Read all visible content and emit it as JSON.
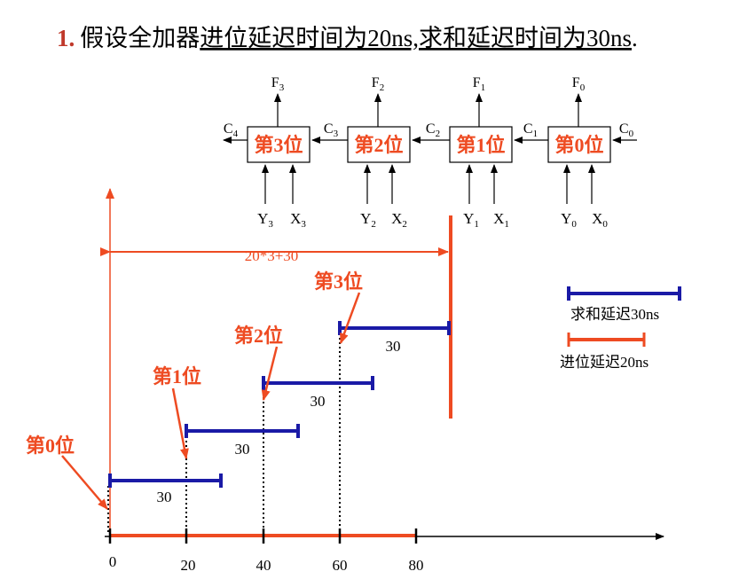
{
  "title": {
    "number": "1.",
    "prefix": "假设全加器",
    "underlined": "进位延迟时间为20ns,求和延迟时间为30ns",
    "suffix": "."
  },
  "adder": {
    "stages": [
      {
        "label": "第3位",
        "f": "F",
        "f_sub": "3",
        "y": "Y",
        "y_sub": "3",
        "x": "X",
        "x_sub": "3"
      },
      {
        "label": "第2位",
        "f": "F",
        "f_sub": "2",
        "y": "Y",
        "y_sub": "2",
        "x": "X",
        "x_sub": "2"
      },
      {
        "label": "第1位",
        "f": "F",
        "f_sub": "1",
        "y": "Y",
        "y_sub": "1",
        "x": "X",
        "x_sub": "1"
      },
      {
        "label": "第0位",
        "f": "F",
        "f_sub": "0",
        "y": "Y",
        "y_sub": "0",
        "x": "X",
        "x_sub": "0"
      }
    ],
    "carries": [
      {
        "c": "C",
        "sub": "4"
      },
      {
        "c": "C",
        "sub": "3"
      },
      {
        "c": "C",
        "sub": "2"
      },
      {
        "c": "C",
        "sub": "1"
      },
      {
        "c": "C",
        "sub": "0"
      }
    ]
  },
  "timing": {
    "axis_ticks": [
      "0",
      "20",
      "40",
      "60",
      "80"
    ],
    "total_label": "20*3+30",
    "sum_delay_label": "30",
    "bit_labels": [
      "第0位",
      "第1位",
      "第2位",
      "第3位"
    ],
    "legend": {
      "sum": "求和延迟30ns",
      "carry": "进位延迟20ns"
    },
    "colors": {
      "carry": "#ee4b22",
      "sum": "#1a1aa6",
      "text": "#000000"
    }
  }
}
